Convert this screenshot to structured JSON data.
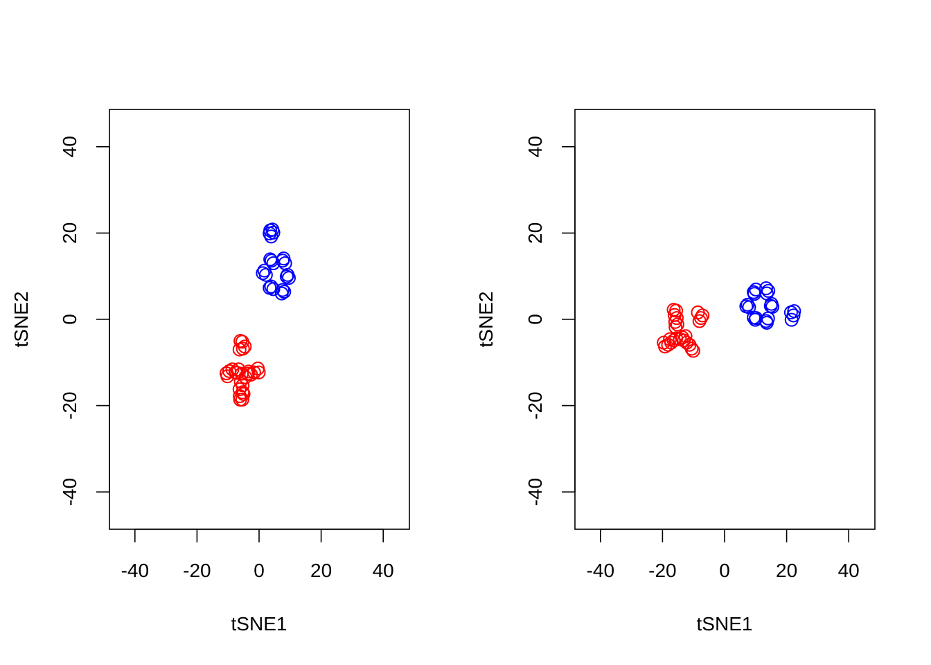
{
  "chart_data": [
    {
      "type": "scatter",
      "title": "",
      "xlabel": "tSNE1",
      "ylabel": "tSNE2",
      "xlim": [
        -40,
        40
      ],
      "ylim": [
        -40,
        40
      ],
      "x_ticks": [
        "-40",
        "-20",
        "0",
        "20",
        "40"
      ],
      "y_ticks": [
        "-40",
        "-20",
        "0",
        "20",
        "40"
      ],
      "marker": "open-circle",
      "grid": false,
      "series": [
        {
          "color": "#ff0000",
          "points": [
            [
              -6,
              -5
            ],
            [
              -5.4,
              -5.2
            ],
            [
              -6.3,
              -7
            ],
            [
              -4.6,
              -6.3
            ],
            [
              -5.2,
              -6.8
            ],
            [
              -10.5,
              -12.5
            ],
            [
              -9.6,
              -12
            ],
            [
              -10.2,
              -13.2
            ],
            [
              -8.6,
              -11.6
            ],
            [
              -7.6,
              -12.3
            ],
            [
              -6.6,
              -11.6
            ],
            [
              -5.6,
              -12.6
            ],
            [
              -4.4,
              -13.4
            ],
            [
              -3.4,
              -12.1
            ],
            [
              -2.6,
              -12.8
            ],
            [
              -1.6,
              -12.3
            ],
            [
              -0.4,
              -11.4
            ],
            [
              -0.1,
              -12.3
            ],
            [
              -3.6,
              -12.6
            ],
            [
              -5.9,
              -14.4
            ],
            [
              -5.3,
              -15.3
            ],
            [
              -6.3,
              -16.2
            ],
            [
              -5.3,
              -16.9
            ],
            [
              -6.2,
              -17.8
            ],
            [
              -5.4,
              -18.6
            ],
            [
              -6.1,
              -18.6
            ],
            [
              -5.0,
              -17.3
            ],
            [
              -7.1,
              -12.4
            ]
          ]
        },
        {
          "color": "#0000ff",
          "points": [
            [
              3.6,
              20.6
            ],
            [
              4.6,
              20.1
            ],
            [
              3.9,
              19.2
            ],
            [
              4.3,
              20.8
            ],
            [
              3.4,
              19.9
            ],
            [
              4.0,
              13.6
            ],
            [
              4.6,
              13.0
            ],
            [
              3.6,
              13.9
            ],
            [
              7.6,
              13.6
            ],
            [
              8.4,
              13.0
            ],
            [
              7.9,
              14.1
            ],
            [
              1.2,
              10.7
            ],
            [
              2.2,
              10.3
            ],
            [
              1.7,
              11.3
            ],
            [
              9.2,
              10.3
            ],
            [
              9.6,
              9.6
            ],
            [
              8.9,
              9.9
            ],
            [
              3.9,
              7.6
            ],
            [
              4.6,
              7.0
            ],
            [
              3.4,
              7.3
            ],
            [
              7.6,
              6.8
            ],
            [
              7.3,
              6.0
            ],
            [
              8.1,
              6.4
            ]
          ]
        }
      ]
    },
    {
      "type": "scatter",
      "title": "",
      "xlabel": "tSNE1",
      "ylabel": "tSNE2",
      "xlim": [
        -40,
        40
      ],
      "ylim": [
        -40,
        40
      ],
      "x_ticks": [
        "-40",
        "-20",
        "0",
        "20",
        "40"
      ],
      "y_ticks": [
        "-40",
        "-20",
        "0",
        "20",
        "40"
      ],
      "marker": "open-circle",
      "grid": false,
      "series": [
        {
          "color": "#ff0000",
          "points": [
            [
              -16.4,
              2.2
            ],
            [
              -15.6,
              2.0
            ],
            [
              -16.1,
              1.0
            ],
            [
              -15.4,
              0.3
            ],
            [
              -15.9,
              -0.6
            ],
            [
              -15.2,
              -1.2
            ],
            [
              -15.8,
              -1.8
            ],
            [
              -8.6,
              1.6
            ],
            [
              -7.1,
              0.9
            ],
            [
              -7.6,
              0.3
            ],
            [
              -8.1,
              -0.4
            ],
            [
              -19.6,
              -5.4
            ],
            [
              -19.2,
              -6.3
            ],
            [
              -18.2,
              -5.9
            ],
            [
              -17.2,
              -5.4
            ],
            [
              -16.4,
              -4.9
            ],
            [
              -17.6,
              -4.6
            ],
            [
              -15.6,
              -4.4
            ],
            [
              -13.6,
              -4.2
            ],
            [
              -12.6,
              -3.9
            ],
            [
              -12.2,
              -5.4
            ],
            [
              -11.3,
              -5.9
            ],
            [
              -10.6,
              -6.8
            ],
            [
              -10.1,
              -7.3
            ],
            [
              -13.1,
              -4.9
            ],
            [
              -14.4,
              -4.6
            ]
          ]
        },
        {
          "color": "#0000ff",
          "points": [
            [
              7.4,
              3.4
            ],
            [
              7.9,
              2.8
            ],
            [
              7.0,
              3.0
            ],
            [
              9.4,
              6.3
            ],
            [
              10.1,
              6.9
            ],
            [
              9.6,
              5.9
            ],
            [
              13.4,
              7.2
            ],
            [
              14.1,
              6.6
            ],
            [
              13.6,
              6.0
            ],
            [
              15.1,
              3.6
            ],
            [
              15.4,
              2.9
            ],
            [
              14.9,
              3.1
            ],
            [
              9.4,
              0.4
            ],
            [
              9.9,
              -0.1
            ],
            [
              10.1,
              0.3
            ],
            [
              13.4,
              -0.4
            ],
            [
              14.0,
              0.2
            ],
            [
              13.6,
              -0.8
            ],
            [
              21.4,
              1.6
            ],
            [
              22.2,
              0.9
            ],
            [
              21.6,
              -0.1
            ],
            [
              22.4,
              1.9
            ]
          ]
        }
      ]
    }
  ]
}
